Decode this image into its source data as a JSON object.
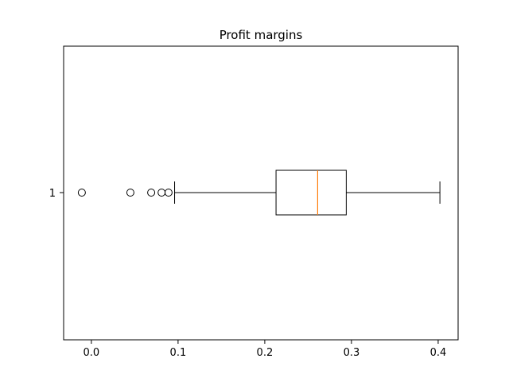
{
  "chart_data": {
    "type": "box",
    "orientation": "horizontal",
    "title": "Profit margins",
    "xlabel": "",
    "ylabel": "",
    "xlim": [
      -0.032,
      0.423
    ],
    "x_ticks": [
      0.0,
      0.1,
      0.2,
      0.3,
      0.4
    ],
    "x_tick_labels": [
      "0.0",
      "0.1",
      "0.2",
      "0.3",
      "0.4"
    ],
    "categories": [
      "1"
    ],
    "series": [
      {
        "whisker_low": 0.096,
        "q1": 0.213,
        "median": 0.261,
        "q3": 0.294,
        "whisker_high": 0.402,
        "outliers": [
          -0.011,
          0.045,
          0.069,
          0.081,
          0.089
        ]
      }
    ],
    "grid": false,
    "legend": "none",
    "colors": {
      "box": "#000000",
      "median": "#ff7f0e",
      "outlier": "#000000"
    }
  }
}
